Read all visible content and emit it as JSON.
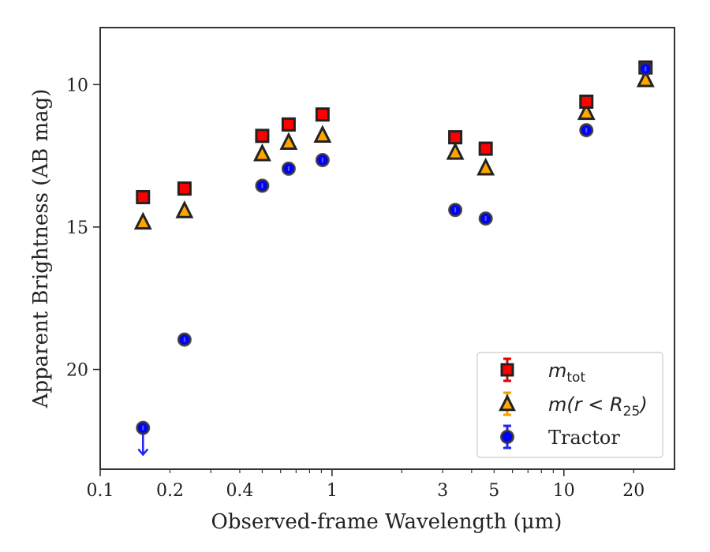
{
  "chart_data": {
    "type": "scatter",
    "xlabel": "Observed-frame Wavelength (μm)",
    "ylabel": "Apparent Brightness (AB mag)",
    "x_scale": "log",
    "y_inverted": true,
    "xlim": [
      0.1,
      30
    ],
    "ylim": [
      23.5,
      8
    ],
    "x_ticks": [
      {
        "value": 0.1,
        "label": "0.1"
      },
      {
        "value": 0.2,
        "label": "0.2"
      },
      {
        "value": 0.4,
        "label": "0.4"
      },
      {
        "value": 1,
        "label": "1"
      },
      {
        "value": 3,
        "label": "3"
      },
      {
        "value": 5,
        "label": "5"
      },
      {
        "value": 10,
        "label": "10"
      },
      {
        "value": 20,
        "label": "20"
      }
    ],
    "y_ticks": [
      {
        "value": 10,
        "label": "10"
      },
      {
        "value": 15,
        "label": "15"
      },
      {
        "value": 20,
        "label": "20"
      }
    ],
    "legend_position": "lower-right",
    "series": [
      {
        "key": "mtot",
        "marker": "square",
        "color": "#ff0000",
        "edge_color": "#222222",
        "error_color": "#dd0000",
        "x": [
          0.153,
          0.231,
          0.5,
          0.65,
          0.91,
          3.4,
          4.6,
          12.5,
          22.5
        ],
        "y": [
          13.95,
          13.65,
          11.8,
          11.4,
          11.05,
          11.85,
          12.25,
          10.6,
          9.4
        ]
      },
      {
        "key": "m_r25",
        "marker": "triangle",
        "color": "#ffa500",
        "edge_color": "#222222",
        "error_color": "#f0a000",
        "x": [
          0.153,
          0.231,
          0.5,
          0.65,
          0.91,
          3.4,
          4.6,
          12.5,
          22.5
        ],
        "y": [
          14.85,
          14.45,
          12.45,
          12.05,
          11.8,
          12.4,
          12.95,
          11.0,
          9.85
        ]
      },
      {
        "key": "tractor",
        "marker": "circle",
        "color": "#0000ff",
        "edge_color": "#333333",
        "error_color": "#2222ff",
        "x": [
          0.153,
          0.231,
          0.5,
          0.65,
          0.91,
          3.4,
          4.6,
          12.5,
          22.5
        ],
        "y": [
          22.05,
          18.95,
          13.55,
          12.95,
          12.65,
          14.4,
          14.7,
          11.6,
          9.45
        ],
        "upper_limit": [
          true,
          false,
          false,
          false,
          false,
          false,
          false,
          false,
          false
        ]
      }
    ],
    "legend": {
      "mtot": {
        "base": "m",
        "sub": "tot"
      },
      "m_r25": {
        "text_a": "m",
        "text_b": "(r < R",
        "sub": "25",
        "text_c": ")"
      },
      "tractor": {
        "label": "Tractor"
      }
    }
  }
}
